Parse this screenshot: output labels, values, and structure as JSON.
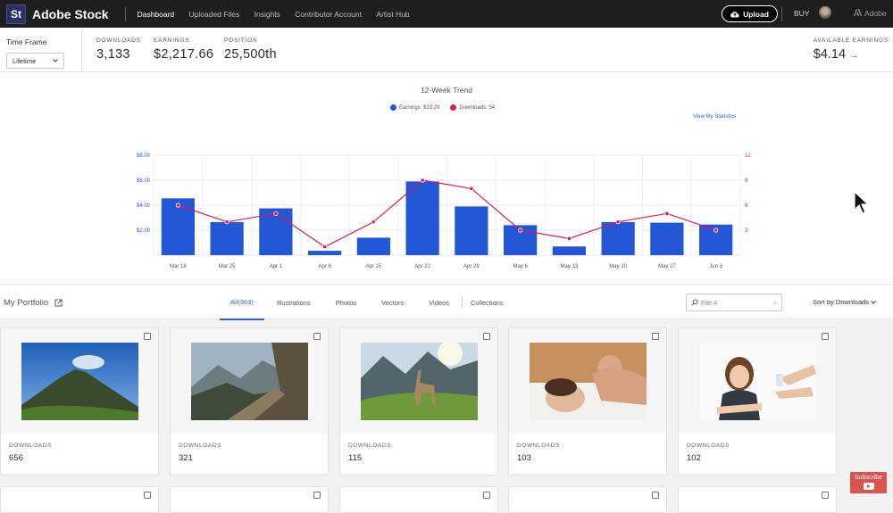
{
  "header": {
    "logo": "St",
    "brand": "Adobe Stock",
    "nav": [
      "Dashboard",
      "Uploaded Files",
      "Insights",
      "Contributor Account",
      "Artist Hub"
    ],
    "upload_label": "Upload",
    "buy_label": "BUY",
    "adobe_label": "Adobe"
  },
  "stats": {
    "timeframe_label": "Time Frame",
    "timeframe_value": "Lifetime",
    "downloads_label": "DOWNLOADS",
    "downloads_value": "3,133",
    "earnings_label": "EARNINGS",
    "earnings_value": "$2,217.66",
    "position_label": "POSITION",
    "position_value": "25,500th",
    "available_label": "AVAILABLE EARNINGS",
    "available_value": "$4.14"
  },
  "chart_data": {
    "type": "bar",
    "title": "12-Week Trend",
    "legend": [
      "Earnings: $33.29",
      "Downloads: 54"
    ],
    "link_label": "View My Statistics",
    "categories": [
      "Mar 18",
      "Mar 25",
      "Apr 1",
      "Apr 8",
      "Apr 15",
      "Apr 22",
      "Apr 29",
      "May 6",
      "May 13",
      "May 20",
      "May 27",
      "Jun 3"
    ],
    "series": [
      {
        "name": "Earnings",
        "type": "bar",
        "axis": "left",
        "color": "#2457d6",
        "values": [
          4.55,
          2.65,
          3.75,
          0.35,
          1.4,
          5.9,
          3.9,
          2.4,
          0.7,
          2.65,
          2.6,
          2.45
        ]
      },
      {
        "name": "Downloads",
        "type": "line",
        "axis": "right",
        "color": "#d81b60",
        "values": [
          6,
          4,
          5,
          1,
          4,
          9,
          8,
          3,
          2,
          4,
          5,
          3
        ]
      }
    ],
    "y_left": {
      "ticks": [
        "$2.00",
        "$4.00",
        "$6.00",
        "$8.00"
      ],
      "values": [
        2,
        4,
        6,
        8
      ],
      "range": [
        0,
        8
      ]
    },
    "y_right": {
      "ticks": [
        "3",
        "6",
        "9",
        "12"
      ],
      "values": [
        3,
        6,
        9,
        12
      ],
      "range": [
        0,
        12
      ]
    },
    "grid": true,
    "legend_position": "top-center"
  },
  "portfolio": {
    "title": "My Portfolio",
    "tabs": [
      "All(363)",
      "Illustrations",
      "Photos",
      "Vectors",
      "Videos",
      "Collections"
    ],
    "search_placeholder": "File #",
    "sort_label": "Sort by Downloads"
  },
  "cards": [
    {
      "label": "DOWNLOADS",
      "value": "656"
    },
    {
      "label": "DOWNLOADS",
      "value": "321"
    },
    {
      "label": "DOWNLOADS",
      "value": "115"
    },
    {
      "label": "DOWNLOADS",
      "value": "103"
    },
    {
      "label": "DOWNLOADS",
      "value": "102"
    }
  ],
  "subscribe_label": "Subscribe"
}
